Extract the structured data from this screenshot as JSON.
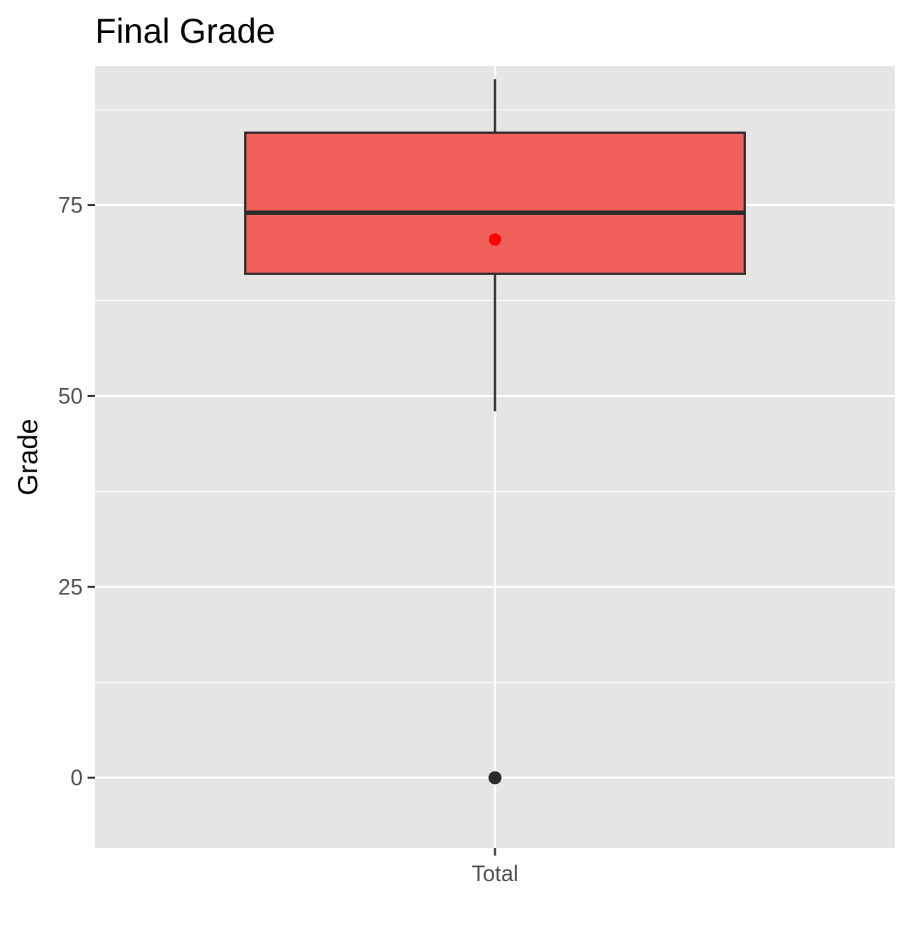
{
  "chart_data": {
    "type": "boxplot",
    "title": "Final Grade",
    "xlabel": "",
    "ylabel": "Grade",
    "categories": [
      "Total"
    ],
    "ylim": [
      -9.2,
      93.2
    ],
    "y_ticks": [
      0,
      25,
      50,
      75
    ],
    "y_tick_labels": [
      "0",
      "25",
      "50",
      "75"
    ],
    "y_minor_ticks": [
      12.5,
      37.5,
      62.5,
      87.5
    ],
    "grid": true,
    "boxes": [
      {
        "category": "Total",
        "whisker_low": 48,
        "q1": 66,
        "median": 74,
        "q3": 84.5,
        "whisker_high": 91.5,
        "mean": 70.5,
        "outliers": [
          0
        ]
      }
    ]
  },
  "colors": {
    "panel_background": "#e5e5e5",
    "grid": "#ffffff",
    "box_fill": "#f2605c",
    "box_outline": "#2a2a2a",
    "mean_point": "#ff0000",
    "outlier_point": "#2a2a2a",
    "tick_text": "#4d4d4d"
  }
}
